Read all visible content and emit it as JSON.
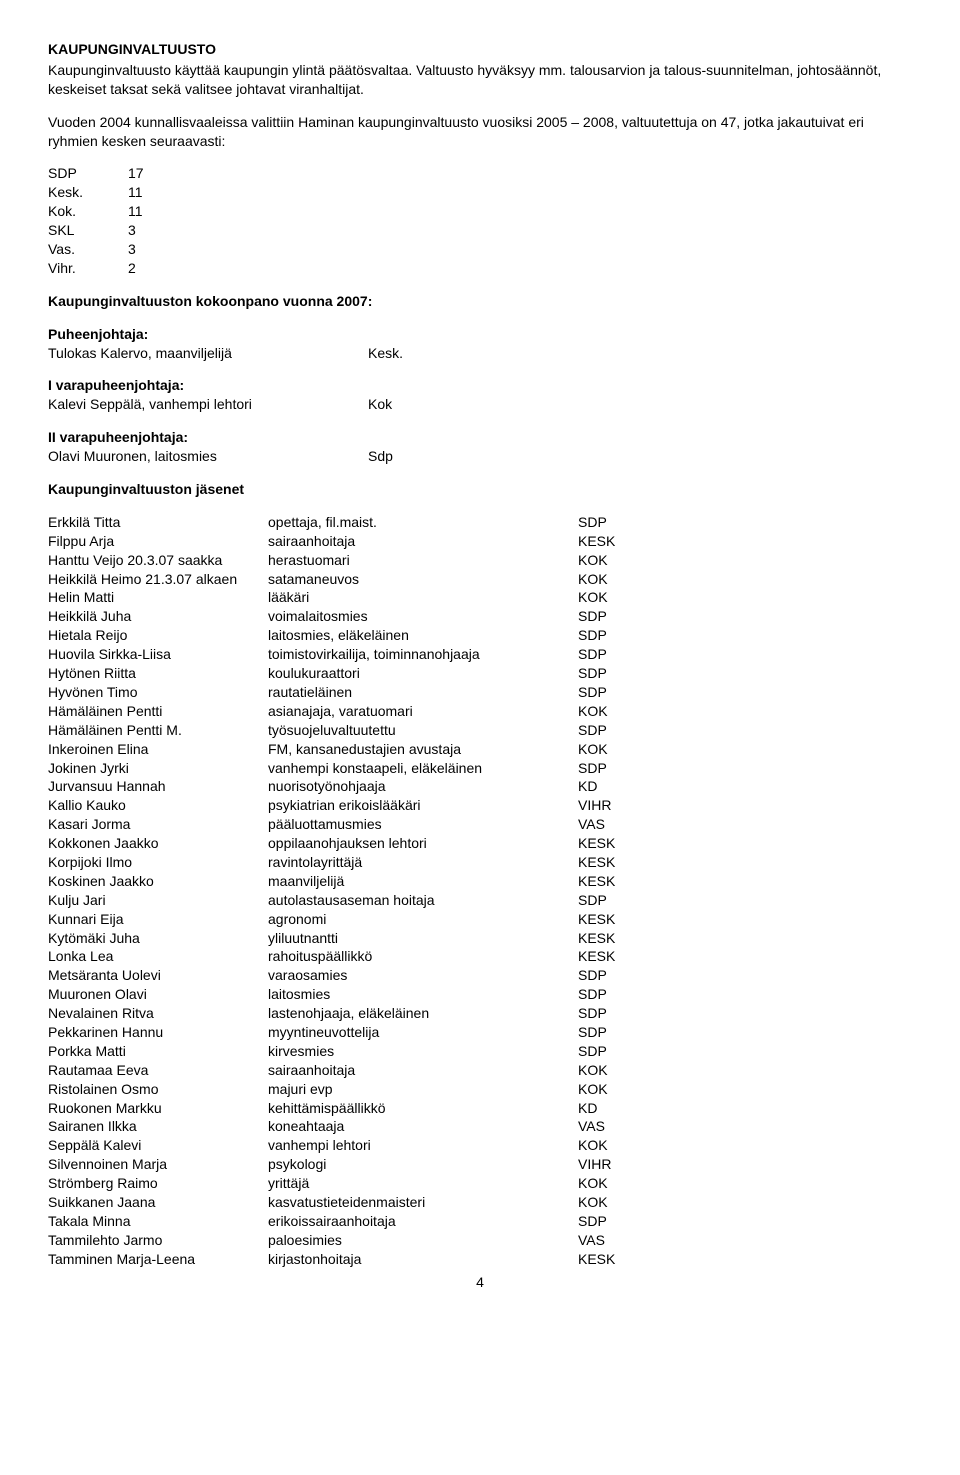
{
  "heading": "KAUPUNGINVALTUUSTO",
  "intro": "Kaupunginvaltuusto käyttää kaupungin ylintä päätösvaltaa. Valtuusto hyväksyy mm. talousarvion ja talous-suunnitelman, johtosäännöt, keskeiset taksat sekä valitsee johtavat viranhaltijat.",
  "election_para": "Vuoden 2004 kunnallisvaaleissa valittiin Haminan kaupunginvaltuusto vuosiksi 2005 – 2008, valtuutettuja on 47, jotka jakautuivat eri ryhmien kesken seuraavasti:",
  "seats": [
    {
      "party": "SDP",
      "count": "17"
    },
    {
      "party": "Kesk.",
      "count": "11"
    },
    {
      "party": "Kok.",
      "count": "11"
    },
    {
      "party": "SKL",
      "count": "3"
    },
    {
      "party": "Vas.",
      "count": "3"
    },
    {
      "party": "Vihr.",
      "count": "2"
    }
  ],
  "composition_title": "Kaupunginvaltuuston kokoonpano vuonna 2007:",
  "roles": [
    {
      "label": "Puheenjohtaja:",
      "name": "Tulokas Kalervo, maanviljelijä",
      "party": "Kesk."
    },
    {
      "label": "I varapuheenjohtaja:",
      "name": "Kalevi Seppälä, vanhempi lehtori",
      "party": "Kok"
    },
    {
      "label": "II varapuheenjohtaja:",
      "name": "Olavi Muuronen, laitosmies",
      "party": "Sdp"
    }
  ],
  "members_title": "Kaupunginvaltuuston jäsenet",
  "members": [
    {
      "name": "Erkkilä Titta",
      "title": "opettaja, fil.maist.",
      "party": "SDP"
    },
    {
      "name": "Filppu Arja",
      "title": "sairaanhoitaja",
      "party": "KESK"
    },
    {
      "name": "Hanttu Veijo 20.3.07 saakka",
      "title": "herastuomari",
      "party": "KOK"
    },
    {
      "name": "Heikkilä Heimo 21.3.07 alkaen",
      "title": "satamaneuvos",
      "party": "KOK"
    },
    {
      "name": "Helin Matti",
      "title": "lääkäri",
      "party": "KOK"
    },
    {
      "name": "Heikkilä Juha",
      "title": "voimalaitosmies",
      "party": "SDP"
    },
    {
      "name": "Hietala Reijo",
      "title": "laitosmies, eläkeläinen",
      "party": "SDP"
    },
    {
      "name": "Huovila Sirkka-Liisa",
      "title": "toimistovirkailija, toiminnanohjaaja",
      "party": "SDP"
    },
    {
      "name": "Hytönen Riitta",
      "title": "koulukuraattori",
      "party": "SDP"
    },
    {
      "name": "Hyvönen Timo",
      "title": "rautatieläinen",
      "party": "SDP"
    },
    {
      "name": "Hämäläinen Pentti",
      "title": "asianajaja, varatuomari",
      "party": "KOK"
    },
    {
      "name": "Hämäläinen Pentti M.",
      "title": "työsuojeluvaltuutettu",
      "party": "SDP"
    },
    {
      "name": "Inkeroinen Elina",
      "title": "FM, kansanedustajien avustaja",
      "party": "KOK"
    },
    {
      "name": "Jokinen Jyrki",
      "title": "vanhempi konstaapeli, eläkeläinen",
      "party": "SDP"
    },
    {
      "name": "Jurvansuu Hannah",
      "title": "nuorisotyönohjaaja",
      "party": "KD"
    },
    {
      "name": "Kallio Kauko",
      "title": "psykiatrian erikoislääkäri",
      "party": "VIHR"
    },
    {
      "name": "Kasari Jorma",
      "title": "pääluottamusmies",
      "party": "VAS"
    },
    {
      "name": "Kokkonen Jaakko",
      "title": "oppilaanohjauksen lehtori",
      "party": "KESK"
    },
    {
      "name": "Korpijoki Ilmo",
      "title": "ravintolayrittäjä",
      "party": "KESK"
    },
    {
      "name": "Koskinen Jaakko",
      "title": "maanviljelijä",
      "party": "KESK"
    },
    {
      "name": "Kulju Jari",
      "title": "autolastausaseman hoitaja",
      "party": "SDP"
    },
    {
      "name": "Kunnari Eija",
      "title": "agronomi",
      "party": "KESK"
    },
    {
      "name": "Kytömäki Juha",
      "title": "yliluutnantti",
      "party": "KESK"
    },
    {
      "name": "Lonka Lea",
      "title": "rahoituspäällikkö",
      "party": "KESK"
    },
    {
      "name": "Metsäranta Uolevi",
      "title": "varaosamies",
      "party": "SDP"
    },
    {
      "name": "Muuronen Olavi",
      "title": "laitosmies",
      "party": "SDP"
    },
    {
      "name": "Nevalainen Ritva",
      "title": "lastenohjaaja, eläkeläinen",
      "party": "SDP"
    },
    {
      "name": "Pekkarinen Hannu",
      "title": "myyntineuvottelija",
      "party": "SDP"
    },
    {
      "name": "Porkka Matti",
      "title": "kirvesmies",
      "party": "SDP"
    },
    {
      "name": "Rautamaa Eeva",
      "title": "sairaanhoitaja",
      "party": "KOK"
    },
    {
      "name": "Ristolainen Osmo",
      "title": "majuri evp",
      "party": "KOK"
    },
    {
      "name": "Ruokonen Markku",
      "title": "kehittämispäällikkö",
      "party": "KD"
    },
    {
      "name": "Sairanen Ilkka",
      "title": "koneahtaaja",
      "party": "VAS"
    },
    {
      "name": "Seppälä Kalevi",
      "title": "vanhempi lehtori",
      "party": "KOK"
    },
    {
      "name": "Silvennoinen Marja",
      "title": "psykologi",
      "party": "VIHR"
    },
    {
      "name": "Strömberg Raimo",
      "title": "yrittäjä",
      "party": "KOK"
    },
    {
      "name": "Suikkanen Jaana",
      "title": "kasvatustieteidenmaisteri",
      "party": "KOK"
    },
    {
      "name": "Takala Minna",
      "title": "erikoissairaanhoitaja",
      "party": "SDP"
    },
    {
      "name": "Tammilehto Jarmo",
      "title": "paloesimies",
      "party": "VAS"
    },
    {
      "name": "Tamminen Marja-Leena",
      "title": "kirjastonhoitaja",
      "party": "KESK"
    }
  ],
  "page_number": "4"
}
